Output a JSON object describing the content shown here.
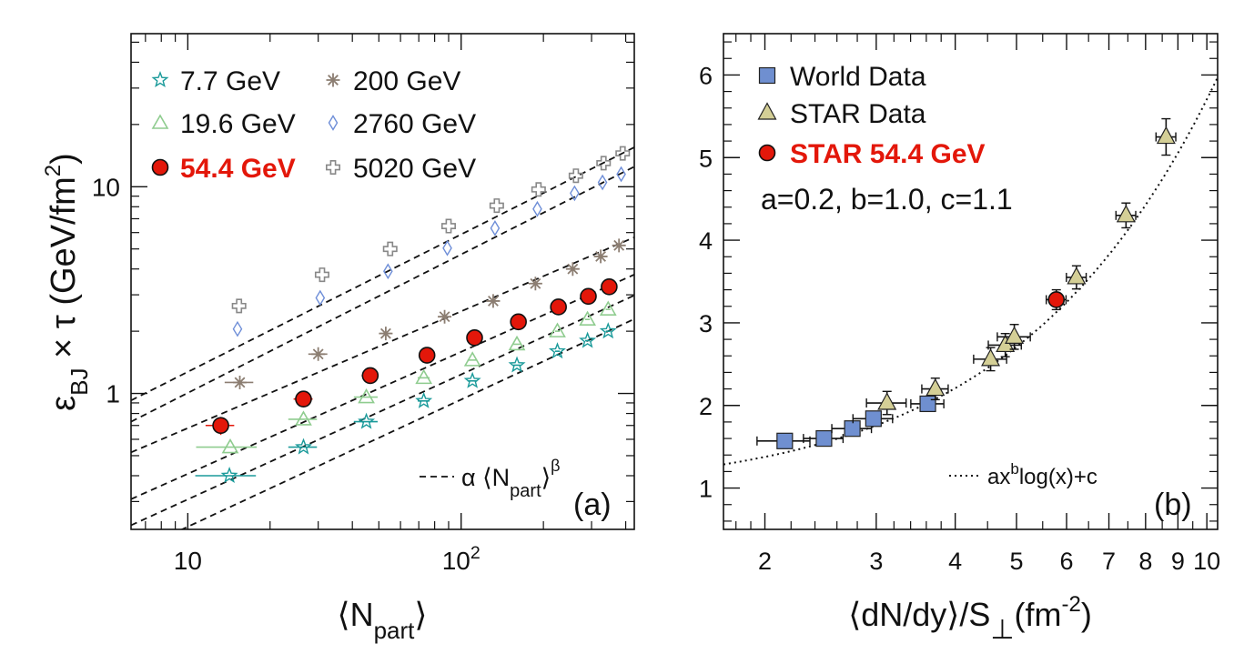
{
  "chart_data": [
    {
      "type": "scatter",
      "panel_label": "(a)",
      "xlabel": "⟨N",
      "xlabel_sub": "part",
      "xlabel_end": "⟩",
      "ylabel": "ε",
      "ylabel_sub": "BJ",
      "ylabel_mid": " × τ (GeV/fm",
      "ylabel_sup": "2",
      "ylabel_end": ")",
      "xscale": "log",
      "yscale": "log",
      "xlim": [
        6.2,
        430
      ],
      "ylim": [
        0.22,
        55
      ],
      "xticks": [
        {
          "value": 10,
          "label": "10"
        },
        {
          "value": 100,
          "label": "10",
          "sup": "2"
        }
      ],
      "yticks": [
        {
          "value": 1,
          "label": "1"
        },
        {
          "value": 10,
          "label": "10"
        }
      ],
      "legend_placement": "top-left",
      "fit_legend": {
        "prefix": "α ⟨N",
        "sub": "part",
        "suffix": "⟩",
        "sup": "β"
      },
      "series": [
        {
          "name": "7.7 GeV",
          "color": "#1a9a9a",
          "marker": "star-open",
          "label_color": "#111111",
          "bold": false,
          "points": [
            [
              14.2,
              0.4
            ],
            [
              26.5,
              0.55
            ],
            [
              45,
              0.73
            ],
            [
              73,
              0.92
            ],
            [
              110,
              1.15
            ],
            [
              160,
              1.37
            ],
            [
              225,
              1.6
            ],
            [
              290,
              1.8
            ],
            [
              345,
              2.0
            ]
          ],
          "xerr": [
            0.25,
            0.12,
            0.1,
            0.05,
            0.04,
            0.03,
            0.02,
            0.02,
            0.02
          ],
          "fit": [
            0.055,
            0.615
          ]
        },
        {
          "name": "19.6 GeV",
          "color": "#8fcc8f",
          "marker": "triangle-open",
          "label_color": "#111111",
          "bold": false,
          "points": [
            [
              14.3,
              0.55
            ],
            [
              26.5,
              0.75
            ],
            [
              45,
              0.96
            ],
            [
              73,
              1.19
            ],
            [
              110,
              1.45
            ],
            [
              160,
              1.73
            ],
            [
              225,
              2.0
            ],
            [
              290,
              2.28
            ],
            [
              345,
              2.55
            ]
          ],
          "xerr": [
            0.25,
            0.12,
            0.1,
            0.05,
            0.04,
            0.03,
            0.02,
            0.02,
            0.02
          ],
          "fit": [
            0.0765,
            0.604
          ]
        },
        {
          "name": "54.4 GeV",
          "color": "#e3170a",
          "marker": "circle-filled",
          "label_color": "#e3170a",
          "bold": true,
          "points": [
            [
              13.2,
              0.7
            ],
            [
              26.5,
              0.94
            ],
            [
              46.5,
              1.22
            ],
            [
              75,
              1.53
            ],
            [
              112,
              1.86
            ],
            [
              162,
              2.22
            ],
            [
              227,
              2.62
            ],
            [
              292,
              2.95
            ],
            [
              348,
              3.28
            ]
          ],
          "xerr": [
            0.12,
            0.08,
            0.07,
            0.05,
            0.04,
            0.03,
            0.02,
            0.02,
            0.02
          ],
          "yerr": [
            0.1,
            0.06,
            0.05,
            0.04,
            0.03,
            0.02,
            0.02,
            0.02,
            0.02
          ],
          "fit": [
            0.105,
            0.59
          ]
        },
        {
          "name": "200 GeV",
          "color": "#8c7e72",
          "marker": "asterisk",
          "label_color": "#111111",
          "bold": false,
          "points": [
            [
              15.5,
              1.13
            ],
            [
              30,
              1.55
            ],
            [
              53,
              1.95
            ],
            [
              87,
              2.35
            ],
            [
              131,
              2.8
            ],
            [
              187,
              3.4
            ],
            [
              256,
              4.0
            ],
            [
              324,
              4.6
            ],
            [
              378,
              5.2
            ]
          ],
          "xerr": [
            0.12,
            0.08,
            0.05,
            0.04,
            0.03,
            0.02,
            0.02,
            0.02,
            0.02
          ],
          "fit": [
            0.185,
            0.565
          ]
        },
        {
          "name": "2760 GeV",
          "color": "#6e8ed8",
          "marker": "diamond-open",
          "label_color": "#111111",
          "bold": false,
          "points": [
            [
              15.2,
              2.05
            ],
            [
              30.5,
              2.9
            ],
            [
              54,
              3.9
            ],
            [
              89,
              5.05
            ],
            [
              133,
              6.3
            ],
            [
              190,
              7.8
            ],
            [
              260,
              9.3
            ],
            [
              329,
              10.5
            ],
            [
              385,
              11.5
            ]
          ],
          "fit": [
            0.215,
            0.67
          ]
        },
        {
          "name": "5020 GeV",
          "color": "#888888",
          "marker": "cross-open",
          "label_color": "#111111",
          "bold": false,
          "points": [
            [
              15.4,
              2.65
            ],
            [
              31,
              3.75
            ],
            [
              55,
              5.0
            ],
            [
              90,
              6.45
            ],
            [
              135,
              8.1
            ],
            [
              192,
              9.7
            ],
            [
              263,
              11.3
            ],
            [
              332,
              13.0
            ],
            [
              390,
              14.5
            ]
          ],
          "fit": [
            0.275,
            0.665
          ]
        }
      ]
    },
    {
      "type": "scatter",
      "panel_label": "(b)",
      "xlabel": "⟨dN/dy⟩/S",
      "xlabel_sub": "⊥",
      "xlabel_mid": "(fm",
      "xlabel_sup": "-2",
      "xlabel_end": ")",
      "xscale": "log",
      "yscale": "linear",
      "xlim": [
        1.72,
        10.4
      ],
      "ylim": [
        0.5,
        6.5
      ],
      "xticks": [
        {
          "value": 2,
          "label": "2"
        },
        {
          "value": 3,
          "label": "3"
        },
        {
          "value": 4,
          "label": "4"
        },
        {
          "value": 5,
          "label": "5"
        },
        {
          "value": 6,
          "label": "6"
        },
        {
          "value": 7,
          "label": "7"
        },
        {
          "value": 8,
          "label": "8"
        },
        {
          "value": 9,
          "label": "9"
        },
        {
          "value": 10,
          "label": "10"
        }
      ],
      "yticks": [
        {
          "value": 1,
          "label": "1"
        },
        {
          "value": 2,
          "label": "2"
        },
        {
          "value": 3,
          "label": "3"
        },
        {
          "value": 4,
          "label": "4"
        },
        {
          "value": 5,
          "label": "5"
        },
        {
          "value": 6,
          "label": "6"
        }
      ],
      "legend_placement": "top-left",
      "params_text": "a=0.2, b=1.0, c=1.1",
      "fit_legend": {
        "prefix": "ax",
        "sup": "b",
        "suffix": "log(x)+c"
      },
      "series": [
        {
          "name": "World Data",
          "color": "#6f8fd0",
          "marker": "square-filled",
          "label_color": "#111111",
          "bold": false,
          "points": [
            [
              2.15,
              1.57
            ],
            [
              2.48,
              1.6
            ],
            [
              2.75,
              1.72
            ],
            [
              2.97,
              1.84
            ],
            [
              3.62,
              2.02
            ]
          ],
          "xerr": [
            0.08,
            0.06,
            0.06,
            0.06,
            0.05
          ],
          "yerr": [
            0.06,
            0.05,
            0.05,
            0.05,
            0.05
          ]
        },
        {
          "name": "STAR Data",
          "color": "#d4cf96",
          "marker": "triangle-filled",
          "label_color": "#111111",
          "bold": false,
          "points": [
            [
              3.12,
              2.03
            ],
            [
              3.72,
              2.2
            ],
            [
              4.55,
              2.56
            ],
            [
              4.8,
              2.73
            ],
            [
              4.96,
              2.83
            ],
            [
              6.22,
              3.55
            ],
            [
              7.45,
              4.3
            ],
            [
              8.62,
              5.25
            ]
          ],
          "xerr": [
            0.06,
            0.04,
            0.05,
            0.05,
            0.05,
            0.03,
            0.03,
            0.03
          ],
          "yerr": [
            0.14,
            0.13,
            0.14,
            0.14,
            0.15,
            0.14,
            0.15,
            0.22
          ]
        },
        {
          "name": "STAR 54.4 GeV",
          "color": "#e3170a",
          "marker": "circle-filled",
          "label_color": "#e3170a",
          "bold": true,
          "points": [
            [
              5.78,
              3.28
            ]
          ],
          "xerr": [
            0.03
          ],
          "yerr": [
            0.12
          ]
        }
      ],
      "fit": {
        "a": 0.2,
        "b": 1.0,
        "c": 1.1
      }
    }
  ]
}
